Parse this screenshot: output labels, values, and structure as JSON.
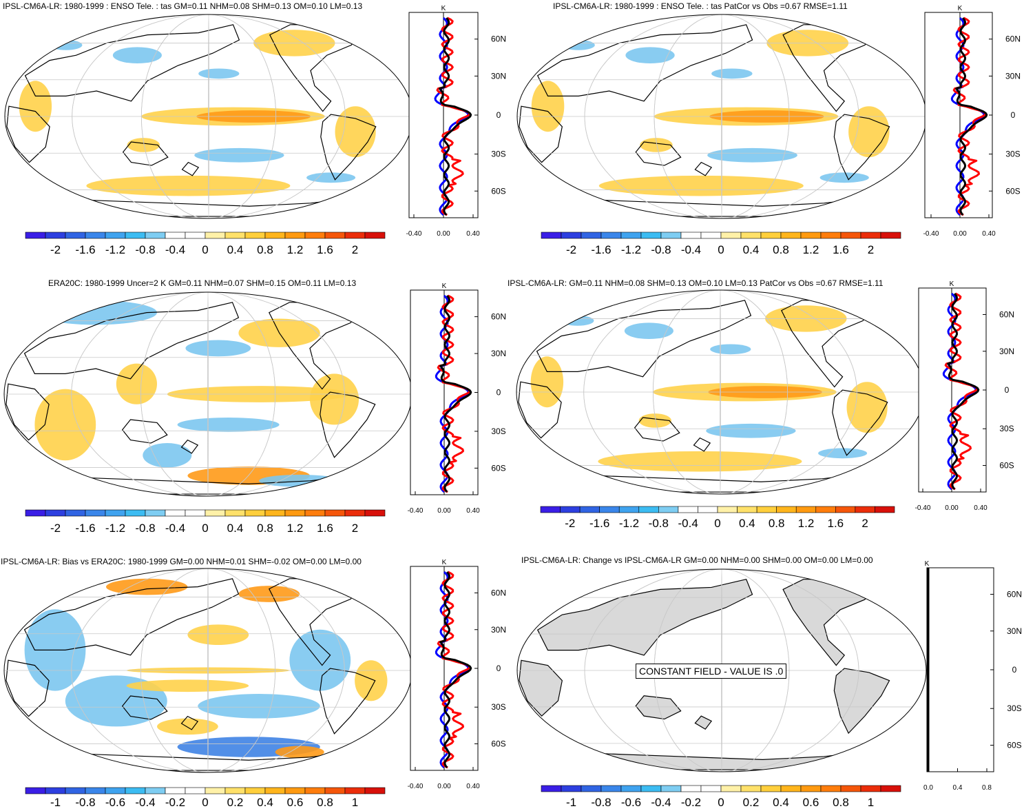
{
  "panels": [
    {
      "id": "p1",
      "title": "IPSL-CM6A-LR: 1980-1999 : ENSO Tele. : tas GM=0.11 NHM=0.08 SHM=0.13 OM=0.10 LM=0.13",
      "map_fill": "colored",
      "colorbar_labels": [
        "-2",
        "-1.6",
        "-1.2",
        "-0.8",
        "-0.4",
        "0",
        "0.4",
        "0.8",
        "1.2",
        "1.6",
        "2"
      ],
      "zonal_unit": "K",
      "zonal_xticks": [
        "-0.40",
        "0.00",
        "0.40"
      ],
      "zonal_ylabels": [
        "60N",
        "30N",
        "0",
        "30S",
        "60S"
      ]
    },
    {
      "id": "p2",
      "title": "IPSL-CM6A-LR: 1980-1999 : ENSO Tele. : tas PatCor vs Obs =0.67 RMSE=1.11",
      "map_fill": "colored",
      "colorbar_labels": [
        "-2",
        "-1.6",
        "-1.2",
        "-0.8",
        "-0.4",
        "0",
        "0.4",
        "0.8",
        "1.2",
        "1.6",
        "2"
      ],
      "zonal_unit": "K",
      "zonal_xticks": [
        "-0.40",
        "0.00",
        "0.40"
      ],
      "zonal_ylabels": [
        "60N",
        "30N",
        "0",
        "30S",
        "60S"
      ]
    },
    {
      "id": "p3",
      "title": "ERA20C: 1980-1999 Uncer=2 K GM=0.11 NHM=0.07 SHM=0.15 OM=0.11 LM=0.13",
      "map_fill": "colored",
      "colorbar_labels": [
        "-2",
        "-1.6",
        "-1.2",
        "-0.8",
        "-0.4",
        "0",
        "0.4",
        "0.8",
        "1.2",
        "1.6",
        "2"
      ],
      "zonal_unit": "K",
      "zonal_xticks": [
        "-0.40",
        "0.00",
        "0.40"
      ],
      "zonal_ylabels": [
        "60N",
        "30N",
        "0",
        "30S",
        "60S"
      ]
    },
    {
      "id": "p4",
      "title": "IPSL-CM6A-LR: GM=0.11 NHM=0.08 SHM=0.13 OM=0.10 LM=0.13 PatCor vs Obs =0.67 RMSE=1.11",
      "map_fill": "colored",
      "colorbar_labels": [
        "-2",
        "-1.6",
        "-1.2",
        "-0.8",
        "-0.4",
        "0",
        "0.4",
        "0.8",
        "1.2",
        "1.6",
        "2"
      ],
      "zonal_unit": "K",
      "zonal_xticks": [
        "-0.40",
        "0.00",
        "0.40"
      ],
      "zonal_ylabels": [
        "60N",
        "30N",
        "0",
        "30S",
        "60S"
      ]
    },
    {
      "id": "p5",
      "title": "IPSL-CM6A-LR: Bias vs ERA20C: 1980-1999 GM=0.00 NHM=0.01 SHM=-0.02 OM=0.00 LM=0.00",
      "map_fill": "colored",
      "colorbar_labels": [
        "-1",
        "-0.8",
        "-0.6",
        "-0.4",
        "-0.2",
        "0",
        "0.2",
        "0.4",
        "0.6",
        "0.8",
        "1"
      ],
      "zonal_unit": "K",
      "zonal_xticks": [
        "-0.40",
        "0.00",
        "0.40"
      ],
      "zonal_ylabels": [
        "60N",
        "30N",
        "0",
        "30S",
        "60S"
      ]
    },
    {
      "id": "p6",
      "title": "IPSL-CM6A-LR: Change vs IPSL-CM6A-LR GM=0.00 NHM=0.00 SHM=0.00 OM=0.00 LM=0.00",
      "map_fill": "gray",
      "constant_message": "CONSTANT FIELD - VALUE IS .0",
      "colorbar_labels": [
        "-1",
        "-0.8",
        "-0.6",
        "-0.4",
        "-0.2",
        "0",
        "0.2",
        "0.4",
        "0.6",
        "0.8",
        "1"
      ],
      "zonal_unit": "K",
      "zonal_xticks": [
        "0.0",
        "0.4",
        "0.8"
      ],
      "zonal_ylabels": [
        "60N",
        "30N",
        "0",
        "30S",
        "60S"
      ]
    }
  ],
  "colors": {
    "palette": [
      "#3a1ee6",
      "#2d3fe0",
      "#3064e3",
      "#3a86ea",
      "#3fa3ef",
      "#3cbcf2",
      "#7ecdf2",
      "#ffffff",
      "#ffffff",
      "#fff1a8",
      "#ffe16a",
      "#ffcf3c",
      "#ffb51c",
      "#ff9a10",
      "#ff7d0c",
      "#f5560a",
      "#eb2d0a",
      "#d8100a"
    ],
    "warm": "#ffd24a",
    "warm_strong": "#ff9a18",
    "cool": "#7cc6f0",
    "cool_strong": "#3f83e4",
    "land_gray": "#d9d9d9",
    "model_line": "#0000ff",
    "obs_line": "#ff0000",
    "mean_line": "#000000"
  }
}
